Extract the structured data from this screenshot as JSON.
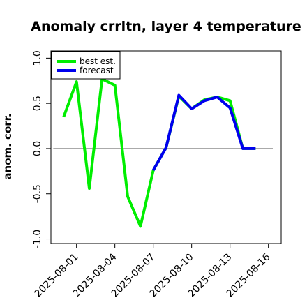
{
  "chart_data": {
    "type": "line",
    "title": "Anomaly crrltn, layer 4 temperature",
    "xlabel": "",
    "ylabel": "anom. corr.",
    "x": [
      "2025-07-31",
      "2025-08-01",
      "2025-08-02",
      "2025-08-03",
      "2025-08-04",
      "2025-08-05",
      "2025-08-06",
      "2025-08-07",
      "2025-08-08",
      "2025-08-09",
      "2025-08-10",
      "2025-08-11",
      "2025-08-12",
      "2025-08-13",
      "2025-08-14",
      "2025-08-15"
    ],
    "xtick_labels": [
      "2025-08-01",
      "2025-08-04",
      "2025-08-07",
      "2025-08-10",
      "2025-08-13",
      "2025-08-16"
    ],
    "xtick_colors": [
      "#000000",
      "#000000",
      "#228b22",
      "#000000",
      "#000000",
      "#000000"
    ],
    "yticks": [
      "-1.0",
      "-0.5",
      "0.0",
      "0.5",
      "1.0"
    ],
    "ylim": [
      -1.05,
      1.08
    ],
    "xlim": [
      "2025-07-30",
      "2025-08-17"
    ],
    "reference_line": 0,
    "legend": {
      "placement": "top-left"
    },
    "series": [
      {
        "name": "best est.",
        "color": "#00ee00",
        "values": [
          0.35,
          0.74,
          -0.44,
          0.77,
          0.7,
          -0.53,
          -0.86,
          -0.24,
          0.01,
          0.58,
          0.44,
          0.54,
          0.57,
          0.53,
          0.0,
          0.0
        ]
      },
      {
        "name": "forecast",
        "color": "#0000ee",
        "values": [
          null,
          null,
          null,
          null,
          null,
          null,
          null,
          -0.24,
          0.01,
          0.59,
          0.44,
          0.53,
          0.57,
          0.45,
          0.0,
          0.0
        ]
      }
    ]
  }
}
